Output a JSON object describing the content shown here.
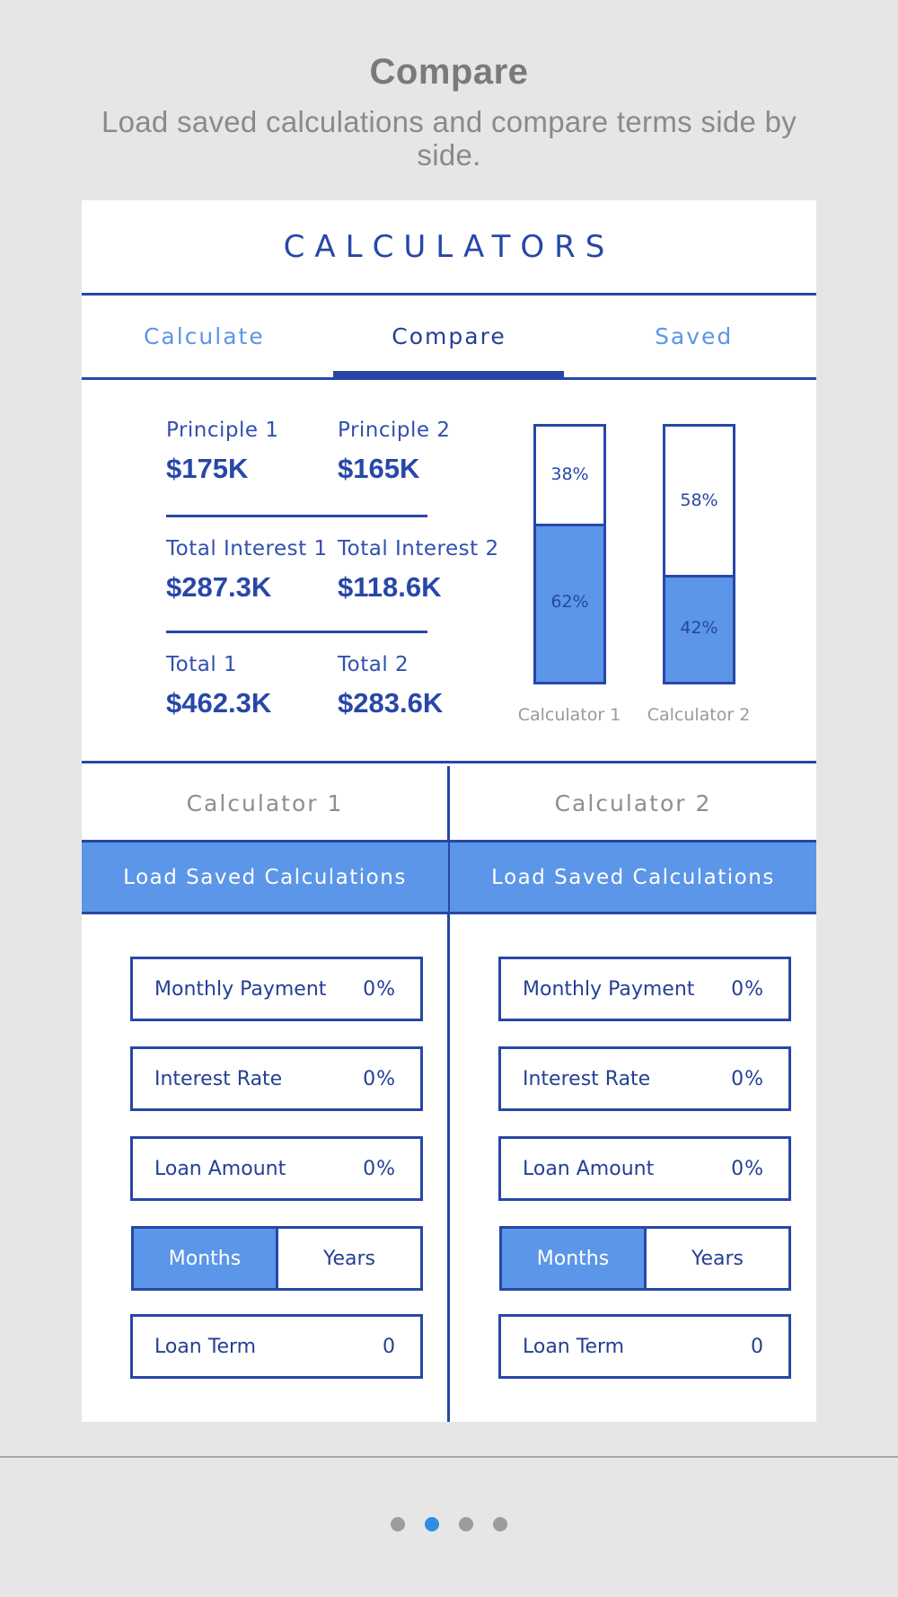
{
  "header": {
    "title": "Compare",
    "subtitle": "Load saved calculations and compare terms side by side."
  },
  "card": {
    "title": "CALCULATORS",
    "tabs": [
      {
        "label": "Calculate",
        "active": false
      },
      {
        "label": "Compare",
        "active": true
      },
      {
        "label": "Saved",
        "active": false
      }
    ]
  },
  "summary": {
    "principle_1": {
      "label": "Principle 1",
      "value": "$175K"
    },
    "principle_2": {
      "label": "Principle 2",
      "value": "$165K"
    },
    "interest_1": {
      "label": "Total Interest 1",
      "value": "$287.3K"
    },
    "interest_2": {
      "label": "Total Interest 2",
      "value": "$118.6K"
    },
    "total_1": {
      "label": "Total 1",
      "value": "$462.3K"
    },
    "total_2": {
      "label": "Total 2",
      "value": "$283.6K"
    }
  },
  "bars": [
    {
      "label": "Calculator 1",
      "top_pct_label": "38%",
      "bottom_pct_label": "62%",
      "fill_fraction": 0.62
    },
    {
      "label": "Calculator 2",
      "top_pct_label": "58%",
      "bottom_pct_label": "42%",
      "fill_fraction": 0.42
    }
  ],
  "calculators": [
    {
      "title": "Calculator 1",
      "load_label": "Load Saved Calculations",
      "monthly_payment": {
        "label": "Monthly Payment",
        "value": "0%"
      },
      "interest_rate": {
        "label": "Interest Rate",
        "value": "0%"
      },
      "loan_amount": {
        "label": "Loan Amount",
        "value": "0%"
      },
      "term_unit": {
        "months": "Months",
        "years": "Years",
        "selected": "Months"
      },
      "loan_term": {
        "label": "Loan Term",
        "value": "0"
      }
    },
    {
      "title": "Calculator 2",
      "load_label": "Load Saved Calculations",
      "monthly_payment": {
        "label": "Monthly Payment",
        "value": "0%"
      },
      "interest_rate": {
        "label": "Interest Rate",
        "value": "0%"
      },
      "loan_amount": {
        "label": "Loan Amount",
        "value": "0%"
      },
      "term_unit": {
        "months": "Months",
        "years": "Years",
        "selected": "Months"
      },
      "loan_term": {
        "label": "Loan Term",
        "value": "0"
      }
    }
  ],
  "pagination": {
    "count": 4,
    "active_index": 1
  },
  "colors": {
    "primary": "#2747a8",
    "accent": "#5b96e8",
    "dot_active": "#2f8de4",
    "background": "#e6e6e6"
  }
}
